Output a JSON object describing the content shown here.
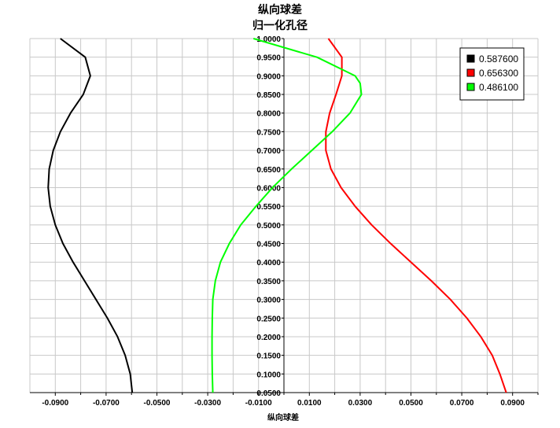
{
  "chart_data": {
    "type": "line",
    "title": "纵向球差",
    "subtitle": "归一化孔径",
    "xlabel": "纵向球差",
    "ylabel": "",
    "xlim": [
      -0.1,
      0.1
    ],
    "ylim": [
      0.05,
      1.0
    ],
    "grid": true,
    "legend_position": "top-right",
    "x_tick_labels": [
      "-0.0900",
      "-0.0700",
      "-0.0500",
      "-0.0300",
      "-0.0100",
      "0.0100",
      "0.0300",
      "0.0500",
      "0.0700",
      "0.0900"
    ],
    "y_tick_labels": [
      "1.0000",
      "0.9500",
      "0.9000",
      "0.8500",
      "0.8000",
      "0.7500",
      "0.7000",
      "0.6500",
      "0.6000",
      "0.5500",
      "0.5000",
      "0.4500",
      "0.4000",
      "0.3500",
      "0.3000",
      "0.2500",
      "0.2000",
      "0.1500",
      "0.1000",
      "0.0500"
    ],
    "series": [
      {
        "name": "0.587600",
        "color": "#000000",
        "points": [
          [
            -0.0597,
            0.05
          ],
          [
            -0.0605,
            0.1
          ],
          [
            -0.0625,
            0.15
          ],
          [
            -0.0655,
            0.2
          ],
          [
            -0.0695,
            0.25
          ],
          [
            -0.074,
            0.3
          ],
          [
            -0.0785,
            0.35
          ],
          [
            -0.083,
            0.4
          ],
          [
            -0.087,
            0.45
          ],
          [
            -0.09,
            0.5
          ],
          [
            -0.092,
            0.55
          ],
          [
            -0.0928,
            0.6
          ],
          [
            -0.0924,
            0.65
          ],
          [
            -0.0908,
            0.7
          ],
          [
            -0.088,
            0.75
          ],
          [
            -0.084,
            0.8
          ],
          [
            -0.079,
            0.85
          ],
          [
            -0.0762,
            0.9
          ],
          [
            -0.0782,
            0.95
          ],
          [
            -0.088,
            1.0
          ]
        ]
      },
      {
        "name": "0.656300",
        "color": "#ff0000",
        "points": [
          [
            0.0875,
            0.05
          ],
          [
            0.085,
            0.1
          ],
          [
            0.082,
            0.15
          ],
          [
            0.0775,
            0.2
          ],
          [
            0.072,
            0.25
          ],
          [
            0.0655,
            0.3
          ],
          [
            0.058,
            0.35
          ],
          [
            0.05,
            0.4
          ],
          [
            0.042,
            0.45
          ],
          [
            0.0345,
            0.5
          ],
          [
            0.028,
            0.55
          ],
          [
            0.0225,
            0.6
          ],
          [
            0.0185,
            0.65
          ],
          [
            0.0165,
            0.7
          ],
          [
            0.0165,
            0.75
          ],
          [
            0.018,
            0.8
          ],
          [
            0.0205,
            0.85
          ],
          [
            0.0228,
            0.9
          ],
          [
            0.0228,
            0.95
          ],
          [
            0.0175,
            1.0
          ]
        ]
      },
      {
        "name": "0.486100",
        "color": "#00ff00",
        "points": [
          [
            -0.028,
            0.05
          ],
          [
            -0.0282,
            0.1
          ],
          [
            -0.0283,
            0.15
          ],
          [
            -0.0283,
            0.2
          ],
          [
            -0.0282,
            0.25
          ],
          [
            -0.028,
            0.3
          ],
          [
            -0.027,
            0.35
          ],
          [
            -0.025,
            0.4
          ],
          [
            -0.0215,
            0.45
          ],
          [
            -0.017,
            0.5
          ],
          [
            -0.011,
            0.55
          ],
          [
            -0.0045,
            0.6
          ],
          [
            0.003,
            0.65
          ],
          [
            0.011,
            0.7
          ],
          [
            0.019,
            0.75
          ],
          [
            0.026,
            0.8
          ],
          [
            0.0305,
            0.85
          ],
          [
            0.03,
            0.88
          ],
          [
            0.028,
            0.9
          ],
          [
            0.013,
            0.95
          ],
          [
            -0.012,
            1.0
          ]
        ]
      }
    ]
  }
}
